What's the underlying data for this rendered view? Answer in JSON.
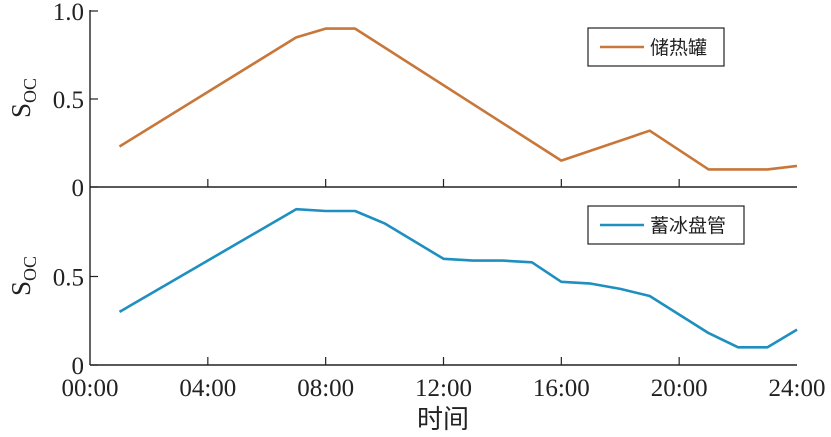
{
  "chart_data": [
    {
      "type": "line",
      "ylabel": "S",
      "ylabel_sub": "OC",
      "ylim": [
        0,
        1.0
      ],
      "yticks": [
        "1.0",
        "0.5",
        "0"
      ],
      "xlim": [
        0,
        24
      ],
      "legend_position": "top-right",
      "series": [
        {
          "name": "储热罐",
          "color": "#c8773a",
          "x": [
            1,
            7,
            8,
            9,
            16,
            19,
            21,
            23,
            24
          ],
          "y": [
            0.23,
            0.85,
            0.9,
            0.9,
            0.15,
            0.32,
            0.1,
            0.1,
            0.12
          ]
        }
      ]
    },
    {
      "type": "line",
      "ylabel": "S",
      "ylabel_sub": "OC",
      "ylim": [
        0,
        1.0
      ],
      "yticks": [
        "0.5",
        "0"
      ],
      "xlim": [
        0,
        24
      ],
      "xlabel": "时间",
      "xticks": [
        "00:00",
        "04:00",
        "08:00",
        "12:00",
        "16:00",
        "20:00",
        "24:00"
      ],
      "legend_position": "top-right",
      "series": [
        {
          "name": "蓄冰盘管",
          "color": "#1f8fc0",
          "x": [
            1,
            7,
            8,
            9,
            10,
            12,
            13,
            14,
            15,
            16,
            17,
            18,
            19,
            21,
            22,
            23,
            24
          ],
          "y": [
            0.3,
            0.88,
            0.87,
            0.87,
            0.8,
            0.6,
            0.59,
            0.59,
            0.58,
            0.47,
            0.46,
            0.43,
            0.39,
            0.18,
            0.1,
            0.1,
            0.2
          ]
        }
      ]
    }
  ]
}
